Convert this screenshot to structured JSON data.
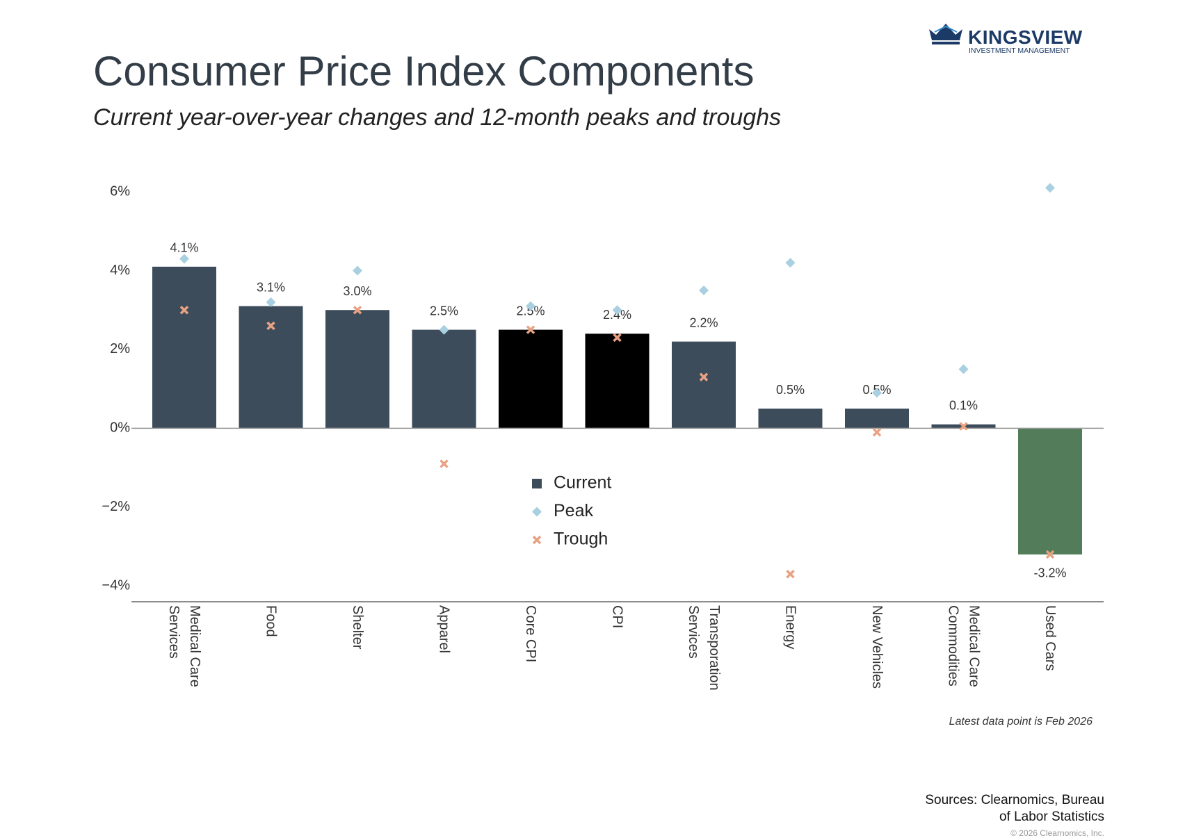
{
  "header": {
    "brand": "KINGSVIEW",
    "brand_subtitle": "INVESTMENT MANAGEMENT"
  },
  "chart_data": {
    "type": "bar",
    "title": "Consumer Price Index Components",
    "subtitle": "Current year-over-year changes and 12-month peaks and troughs",
    "categories": [
      "Medical Care Services",
      "Food",
      "Shelter",
      "Apparel",
      "Core CPI",
      "CPI",
      "Transporation Services",
      "Energy",
      "New Vehicles",
      "Medical Care Commodities",
      "Used Cars"
    ],
    "series": [
      {
        "name": "Current",
        "color": "#3d4c5a",
        "point_colors": [
          "#3d4c5a",
          "#3d4c5a",
          "#3d4c5a",
          "#3d4c5a",
          "#000000",
          "#000000",
          "#3d4c5a",
          "#3d4c5a",
          "#3d4c5a",
          "#3d4c5a",
          "#527c5a"
        ],
        "values": [
          4.1,
          3.1,
          3.0,
          2.5,
          2.5,
          2.4,
          2.2,
          0.5,
          0.5,
          0.1,
          -3.2
        ],
        "value_labels": [
          "4.1%",
          "3.1%",
          "3.0%",
          "2.5%",
          "2.5%",
          "2.4%",
          "2.2%",
          "0.5%",
          "0.5%",
          "0.1%",
          "-3.2%"
        ]
      },
      {
        "name": "Peak",
        "color": "#a8d0e0",
        "marker": "diamond",
        "values": [
          4.3,
          3.2,
          4.0,
          2.5,
          3.1,
          3.0,
          3.5,
          4.2,
          0.9,
          1.5,
          6.1
        ]
      },
      {
        "name": "Trough",
        "color": "#e8a283",
        "marker": "x",
        "values": [
          3.0,
          2.6,
          3.0,
          -0.9,
          2.5,
          2.3,
          1.3,
          -3.7,
          -0.1,
          0.05,
          -3.2
        ]
      }
    ],
    "ylim": [
      -4.4,
      6.3
    ],
    "yticks": [
      {
        "value": -4,
        "label": "−4%"
      },
      {
        "value": -2,
        "label": "−2%"
      },
      {
        "value": 0,
        "label": "0%"
      },
      {
        "value": 2,
        "label": "2%"
      },
      {
        "value": 4,
        "label": "4%"
      },
      {
        "value": 6,
        "label": "6%"
      }
    ],
    "grid": false,
    "note": "Latest data point is Feb 2026"
  },
  "footer": {
    "sources": "Sources: Clearnomics, Bureau of Labor Statistics",
    "copyright": "© 2026 Clearnomics, Inc."
  }
}
